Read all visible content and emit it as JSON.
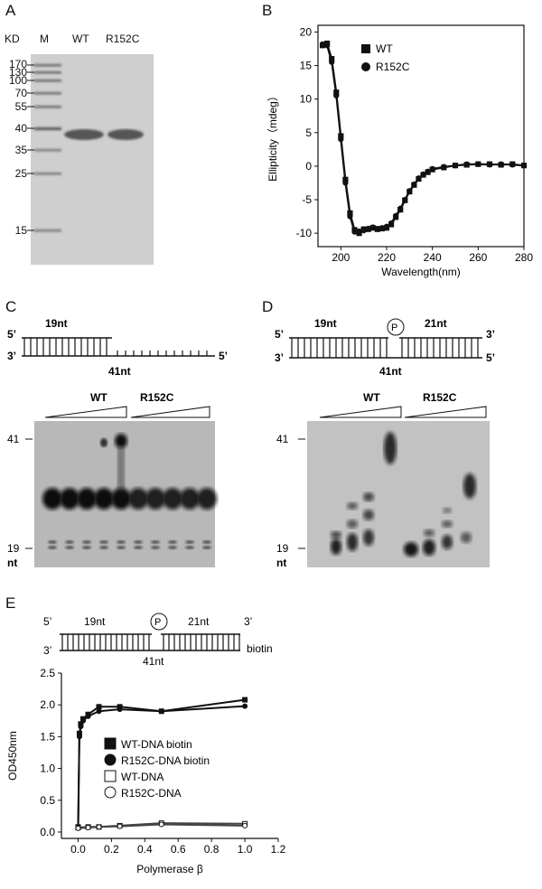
{
  "panels": {
    "A": {
      "label": "A",
      "kd_label": "KD",
      "marker_label": "M",
      "lane_labels": [
        "WT",
        "R152C"
      ],
      "marker_sizes": [
        "170",
        "130",
        "100",
        "70",
        "55",
        "40",
        "35",
        "25",
        "15"
      ]
    },
    "B": {
      "label": "B",
      "ylabel": "Ellipticity（mdeg）",
      "xlabel": "Wavelength(nm)",
      "legend": [
        "WT",
        "R152C"
      ]
    },
    "C": {
      "label": "C",
      "top_strand": "19nt",
      "template": "41nt",
      "five_prime": "5’",
      "three_prime": "3’",
      "five_prime_right": "5’",
      "groups": [
        "WT",
        "R152C"
      ],
      "size_top": "41",
      "size_bottom": "19",
      "unit": "nt"
    },
    "D": {
      "label": "D",
      "left_strand": "19nt",
      "right_strand": "21nt",
      "template": "41nt",
      "phosphate": "P",
      "five_prime": "5’",
      "three_prime": "3’",
      "three_prime_right": "3’",
      "five_prime_right": "5’",
      "groups": [
        "WT",
        "R152C"
      ],
      "size_top": "41",
      "size_bottom": "19",
      "unit": "nt"
    },
    "E": {
      "label": "E",
      "left_strand": "19nt",
      "right_strand": "21nt",
      "template": "41nt",
      "phosphate": "P",
      "five_prime": "5’",
      "three_prime": "3’",
      "three_prime_right": "3’",
      "biotin": "biotin",
      "ylabel": "OD450nm",
      "xlabel": "Polymerase β",
      "legend": [
        "WT-DNA biotin",
        "R152C-DNA biotin",
        "WT-DNA",
        "R152C-DNA"
      ]
    }
  },
  "chart_data": [
    {
      "type": "scatter",
      "panel": "B",
      "xlabel": "Wavelength(nm)",
      "ylabel": "Ellipticity（mdeg）",
      "xlim": [
        190,
        280
      ],
      "ylim": [
        -12,
        21
      ],
      "xticks": [
        200,
        220,
        240,
        260,
        280
      ],
      "yticks": [
        -10,
        -5,
        0,
        5,
        10,
        15,
        20
      ],
      "legend_position": "top-right",
      "series": [
        {
          "name": "WT",
          "marker": "square",
          "x": [
            192,
            194,
            196,
            198,
            200,
            202,
            204,
            206,
            208,
            210,
            212,
            214,
            216,
            218,
            220,
            222,
            224,
            226,
            228,
            230,
            232,
            234,
            236,
            238,
            240,
            245,
            250,
            255,
            260,
            265,
            270,
            275,
            280
          ],
          "y": [
            18,
            18.3,
            16,
            11,
            4.5,
            -2,
            -7,
            -9.5,
            -10,
            -9.4,
            -9.4,
            -9.2,
            -9.4,
            -9.3,
            -9.2,
            -8.7,
            -7.6,
            -6.5,
            -5.1,
            -3.8,
            -2.8,
            -1.9,
            -1.3,
            -0.9,
            -0.5,
            -0.2,
            0.1,
            0.2,
            0.3,
            0.3,
            0.2,
            0.3,
            0.1
          ]
        },
        {
          "name": "R152C",
          "marker": "circle",
          "x": [
            192,
            194,
            196,
            198,
            200,
            202,
            204,
            206,
            208,
            210,
            212,
            214,
            216,
            218,
            220,
            222,
            224,
            226,
            228,
            230,
            232,
            234,
            236,
            238,
            240,
            245,
            250,
            255,
            260,
            265,
            270,
            275,
            280
          ],
          "y": [
            18.2,
            18,
            15.5,
            10.5,
            4,
            -2.5,
            -7.5,
            -9.8,
            -9.7,
            -9.6,
            -9.3,
            -9.1,
            -9.3,
            -9.2,
            -9,
            -8.5,
            -7.4,
            -6.3,
            -5,
            -3.7,
            -2.7,
            -1.8,
            -1.2,
            -0.8,
            -0.4,
            -0.1,
            0.1,
            0.3,
            0.3,
            0.2,
            0.3,
            0.2,
            0.1
          ]
        }
      ]
    },
    {
      "type": "line",
      "panel": "E",
      "xlabel": "Polymerase β",
      "ylabel": "OD450nm",
      "xlim": [
        -0.1,
        1.2
      ],
      "ylim": [
        -0.1,
        2.5
      ],
      "xticks": [
        0.0,
        0.2,
        0.4,
        0.6,
        0.8,
        1.0,
        1.2
      ],
      "yticks": [
        0.0,
        0.5,
        1.0,
        1.5,
        2.0,
        2.5
      ],
      "legend_position": "center",
      "series": [
        {
          "name": "WT-DNA biotin",
          "marker": "filled-square",
          "x": [
            0,
            0.008,
            0.016,
            0.03,
            0.06,
            0.125,
            0.25,
            0.5,
            1.0
          ],
          "y": [
            0.08,
            1.55,
            1.7,
            1.78,
            1.85,
            1.97,
            1.97,
            1.9,
            2.08
          ]
        },
        {
          "name": "R152C-DNA biotin",
          "marker": "filled-circle",
          "x": [
            0,
            0.008,
            0.016,
            0.03,
            0.06,
            0.125,
            0.25,
            0.5,
            1.0
          ],
          "y": [
            0.06,
            1.5,
            1.66,
            1.75,
            1.82,
            1.9,
            1.93,
            1.9,
            1.98
          ]
        },
        {
          "name": "WT-DNA",
          "marker": "open-square",
          "x": [
            0,
            0.06,
            0.125,
            0.25,
            0.5,
            1.0
          ],
          "y": [
            0.07,
            0.08,
            0.08,
            0.1,
            0.14,
            0.13
          ]
        },
        {
          "name": "R152C-DNA",
          "marker": "open-circle",
          "x": [
            0,
            0.06,
            0.125,
            0.25,
            0.5,
            1.0
          ],
          "y": [
            0.06,
            0.07,
            0.08,
            0.09,
            0.12,
            0.1
          ]
        }
      ]
    }
  ]
}
